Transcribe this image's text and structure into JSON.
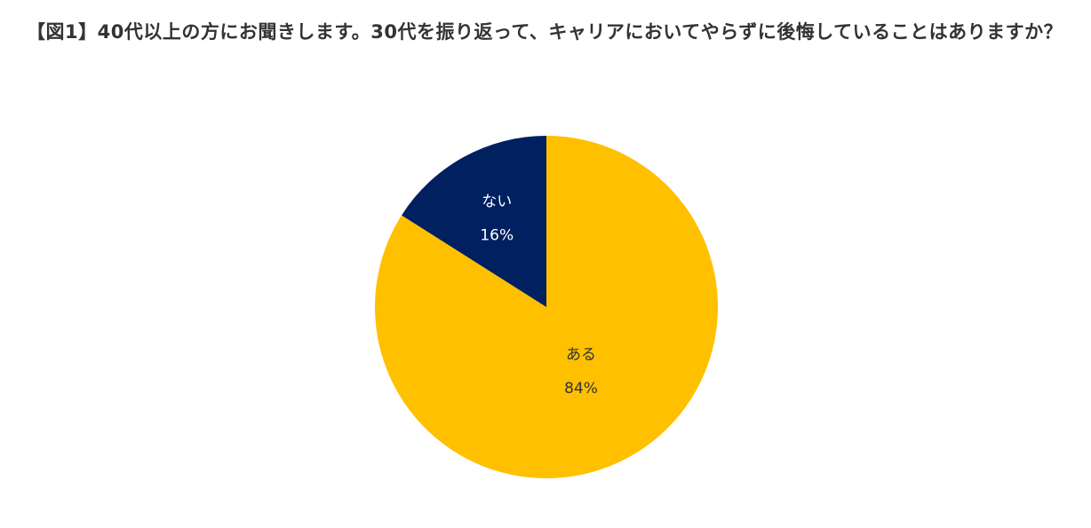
{
  "question": "【図1】40代以上の方にお聞きします。30代を振り返って、キャリアにおいてやらずに後悔していることはありますか？",
  "chart_data": {
    "type": "pie",
    "title": "",
    "start_angle": "12 o'clock",
    "direction": "clockwise",
    "slices": [
      {
        "label": "ある",
        "value": 84,
        "value_label": "84%",
        "color": "#FFC000",
        "text_color": "#333333"
      },
      {
        "label": "ない",
        "value": 16,
        "value_label": "16%",
        "color": "#002060",
        "text_color": "#FFFFFF"
      }
    ]
  }
}
